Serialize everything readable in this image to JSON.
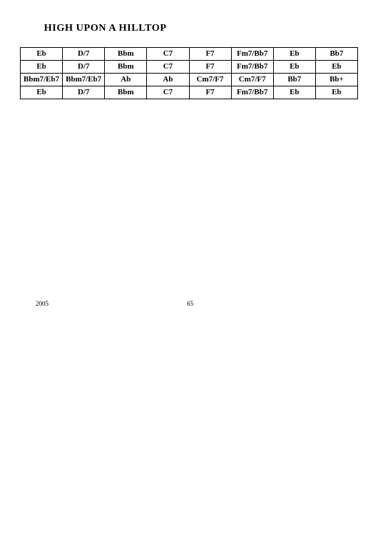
{
  "title": "HIGH UPON A HILLTOP",
  "table": {
    "columns": 8,
    "rows": [
      [
        "Eb",
        "D/7",
        "Bbm",
        "C7",
        "F7",
        "Fm7/Bb7",
        "Eb",
        "Bb7"
      ],
      [
        "Eb",
        "D/7",
        "Bbm",
        "C7",
        "F7",
        "Fm7/Bb7",
        "Eb",
        "Eb"
      ],
      [
        "Bbm7/Eb7",
        "Bbm7/Eb7",
        "Ab",
        "Ab",
        "Cm7/F7",
        "Cm7/F7",
        "Bb7",
        "Bb+"
      ],
      [
        "Eb",
        "D/7",
        "Bbm",
        "C7",
        "F7",
        "Fm7/Bb7",
        "Eb",
        "Eb"
      ]
    ]
  },
  "footer": {
    "year": "2005",
    "page": "65"
  }
}
